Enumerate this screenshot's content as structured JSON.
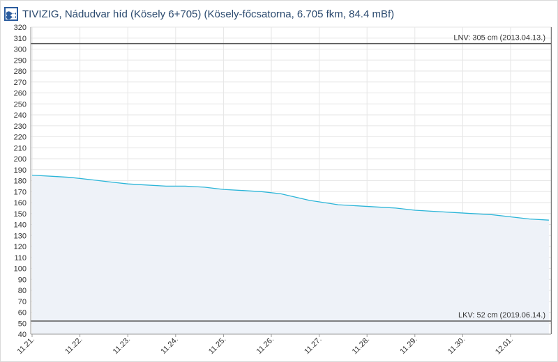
{
  "header": {
    "logo_icon": "tivizig-wave-logo",
    "title": "TIVIZIG, Nádudvar híd (Kösely 6+705) (Kösely-főcsatorna, 6.705 fkm, 84.4 mBf)"
  },
  "chart_data": {
    "type": "line",
    "title": "TIVIZIG, Nádudvar híd (Kösely 6+705) (Kösely-főcsatorna, 6.705 fkm, 84.4 mBf)",
    "xlabel": "",
    "ylabel": "",
    "ylim": [
      40,
      320
    ],
    "yticks": [
      40,
      50,
      60,
      70,
      80,
      90,
      100,
      110,
      120,
      130,
      140,
      150,
      160,
      170,
      180,
      190,
      200,
      210,
      220,
      230,
      240,
      250,
      260,
      270,
      280,
      290,
      300,
      310,
      320
    ],
    "xlim": [
      0,
      10.85
    ],
    "xticks": [
      {
        "x": 0,
        "label": "11.21."
      },
      {
        "x": 1,
        "label": "11.22."
      },
      {
        "x": 2,
        "label": "11.23."
      },
      {
        "x": 3,
        "label": "11.24."
      },
      {
        "x": 4,
        "label": "11.25."
      },
      {
        "x": 5,
        "label": "11.26."
      },
      {
        "x": 6,
        "label": "11.27."
      },
      {
        "x": 7,
        "label": "11.28."
      },
      {
        "x": 8,
        "label": "11.29."
      },
      {
        "x": 9,
        "label": "11.30."
      },
      {
        "x": 10,
        "label": "12.01."
      }
    ],
    "grid": true,
    "line_color": "#2bb5d8",
    "fill_color": "#eef2f8",
    "series": [
      {
        "x": [
          0,
          0.4,
          0.8,
          1.2,
          1.6,
          2.0,
          2.4,
          2.8,
          3.2,
          3.6,
          4.0,
          4.4,
          4.8,
          5.2,
          5.5,
          5.8,
          6.1,
          6.4,
          6.8,
          7.2,
          7.6,
          8.0,
          8.4,
          8.8,
          9.2,
          9.6,
          10.0,
          10.4,
          10.8
        ],
        "y": [
          185,
          184,
          183,
          181,
          179,
          177,
          176,
          175,
          175,
          174,
          172,
          171,
          170,
          168,
          165,
          162,
          160,
          158,
          157,
          156,
          155,
          153,
          152,
          151,
          150,
          149,
          147,
          145,
          144
        ]
      }
    ],
    "reference_lines": [
      {
        "name": "LNV",
        "value": 305,
        "label": "LNV: 305 cm (2013.04.13.)",
        "color": "#555555"
      },
      {
        "name": "LKV",
        "value": 52,
        "label": "LKV: 52 cm (2019.06.14.)",
        "color": "#555555"
      }
    ],
    "cursor_x": 10.85
  }
}
